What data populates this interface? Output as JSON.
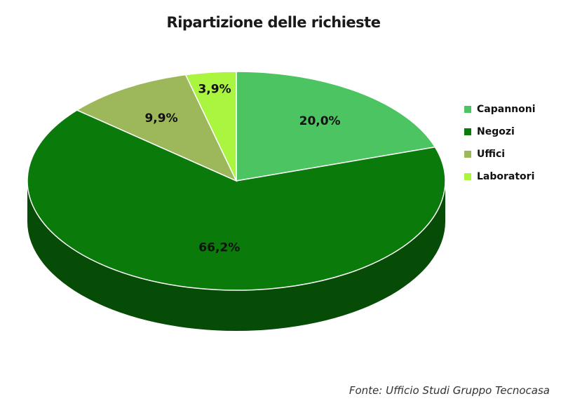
{
  "chart_data": {
    "type": "pie",
    "title": "Ripartizione delle richieste",
    "categories": [
      "Capannoni",
      "Negozi",
      "Uffici",
      "Laboratori"
    ],
    "values": [
      20.0,
      66.2,
      9.9,
      3.9
    ],
    "value_labels": [
      "20,0%",
      "66,2%",
      "9,9%",
      "3,9%"
    ],
    "colors": [
      "#4cc462",
      "#0a7a0a",
      "#9cb85a",
      "#a9f53f"
    ],
    "style": "3d",
    "legend_position": "right"
  },
  "source": "Fonte: Ufficio Studi Gruppo Tecnocasa"
}
